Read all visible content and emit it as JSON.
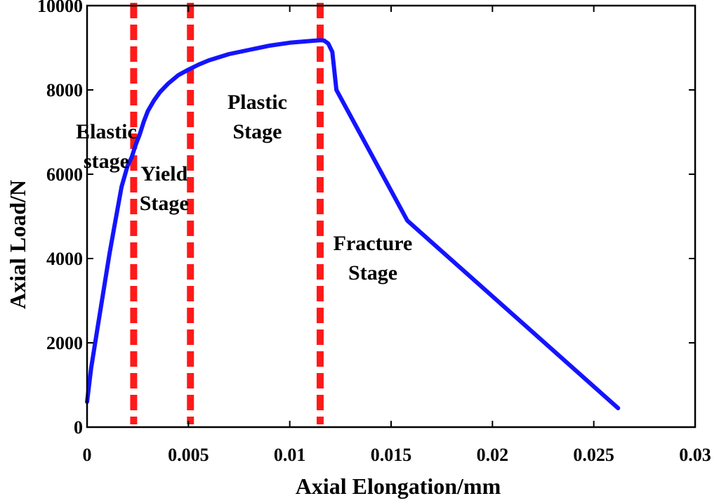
{
  "chart_data": {
    "type": "line",
    "title": "",
    "xlabel": "Axial Elongation/mm",
    "ylabel": "Axial Load/N",
    "xlim": [
      0,
      0.03
    ],
    "ylim": [
      0,
      10000
    ],
    "grid": false,
    "legend": "none",
    "colors": {
      "series": "#1414ff",
      "boundary": "#ff1a1a",
      "axis": "#000000"
    },
    "xticks": [
      0,
      0.005,
      0.01,
      0.015,
      0.02,
      0.025,
      0.03
    ],
    "xtick_labels": [
      "0",
      "0.005",
      "0.01",
      "0.015",
      "0.02",
      "0.025",
      "0.03"
    ],
    "yticks": [
      0,
      2000,
      4000,
      6000,
      8000,
      10000
    ],
    "ytick_labels": [
      "0",
      "2000",
      "4000",
      "6000",
      "8000",
      "10000"
    ],
    "series": [
      {
        "name": "Load-elongation curve",
        "x": [
          0,
          0.0002,
          0.0005,
          0.0008,
          0.0011,
          0.0014,
          0.0017,
          0.002,
          0.0022,
          0.0024,
          0.0026,
          0.0028,
          0.003,
          0.0033,
          0.0036,
          0.004,
          0.0045,
          0.005,
          0.0055,
          0.006,
          0.007,
          0.008,
          0.009,
          0.01,
          0.011,
          0.0115,
          0.0117,
          0.0119,
          0.0121,
          0.0123,
          0.0158,
          0.0262
        ],
        "y": [
          600,
          1400,
          2300,
          3200,
          4100,
          4900,
          5700,
          6200,
          6400,
          6700,
          6950,
          7250,
          7500,
          7750,
          7950,
          8150,
          8350,
          8480,
          8600,
          8700,
          8850,
          8950,
          9050,
          9120,
          9160,
          9180,
          9170,
          9100,
          8900,
          8000,
          4900,
          450
        ]
      }
    ],
    "boundaries": [
      {
        "x": 0.0023
      },
      {
        "x": 0.0051
      },
      {
        "x": 0.0115
      }
    ],
    "annotations": [
      {
        "lines": [
          "Elastic",
          "stage"
        ],
        "x": 0.00095,
        "y": 6850
      },
      {
        "lines": [
          "Yield",
          "Stage"
        ],
        "x": 0.0038,
        "y": 5850
      },
      {
        "lines": [
          "Plastic",
          "Stage"
        ],
        "x": 0.0084,
        "y": 7550
      },
      {
        "lines": [
          "Fracture",
          "Stage"
        ],
        "x": 0.0141,
        "y": 4200
      }
    ]
  }
}
